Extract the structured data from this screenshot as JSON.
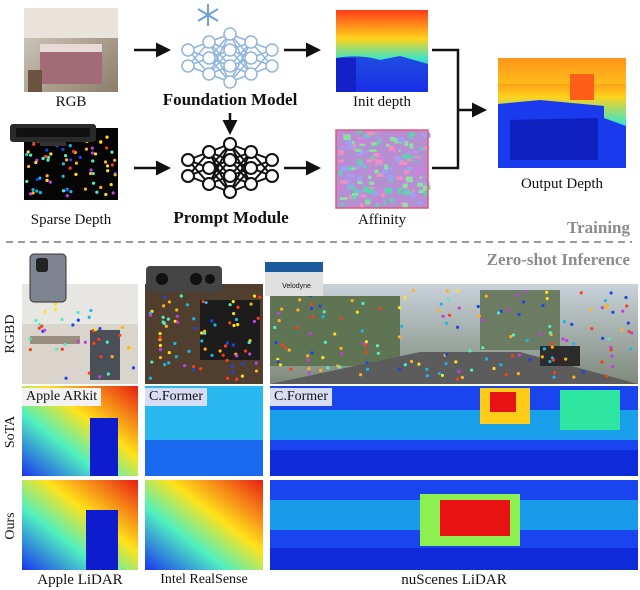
{
  "colors": {
    "accent_gray": "#8c8c8c",
    "tag_bg": "#d8dcf4",
    "line": "#111111"
  },
  "training": {
    "rgb_label": "RGB",
    "sparse_label": "Sparse Depth",
    "foundation_label": "Foundation Model",
    "prompt_label": "Prompt Module",
    "init_label": "Init depth",
    "affinity_label": "Affinity",
    "output_label": "Output Depth",
    "section_label": "Training"
  },
  "inference": {
    "section_label": "Zero-shot Inference",
    "rows": [
      "RGBD",
      "SoTA",
      "Ours"
    ],
    "sota_tags": [
      "Apple ARkit",
      "C.Former",
      "C.Former"
    ],
    "device_logo": "Velodyne",
    "columns": [
      "Apple LiDAR",
      "Intel RealSense",
      "nuScenes LiDAR"
    ]
  },
  "icons": [
    "snowflake-icon",
    "neural-network-icon",
    "arrow-icon",
    "kinect-sensor-icon",
    "ipad-icon",
    "realsense-camera-icon",
    "lidar-sensor-icon"
  ]
}
